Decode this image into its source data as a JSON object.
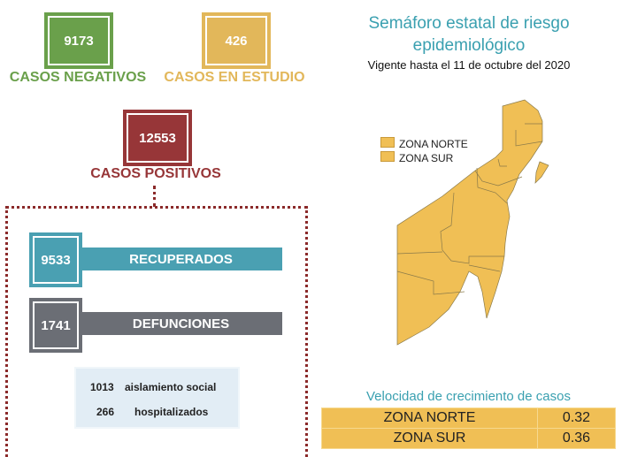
{
  "cards": {
    "negativos": {
      "value": "9173",
      "label": "CASOS NEGATIVOS",
      "color": "#6aa04b"
    },
    "estudio": {
      "value": "426",
      "label": "CASOS EN ESTUDIO",
      "color": "#e2b75a"
    },
    "positivos": {
      "value": "12553",
      "label": "CASOS POSITIVOS",
      "color": "#973638"
    }
  },
  "bars": {
    "recuperados": {
      "value": "9533",
      "label": "RECUPERADOS",
      "color": "#4aa0b2"
    },
    "defunciones": {
      "value": "1741",
      "label": "DEFUNCIONES",
      "color": "#6b6e75"
    }
  },
  "details": [
    {
      "value": "1013",
      "label": "aislamiento social"
    },
    {
      "value": "266",
      "label": "hospitalizados"
    }
  ],
  "map": {
    "title": "Semáforo estatal de riesgo epidemiológico",
    "subtitle": "Vigente hasta el 11 de octubre del 2020",
    "legend": [
      "ZONA NORTE",
      "ZONA SUR"
    ],
    "zone_color": "#f0bf55"
  },
  "growth": {
    "title": "Velocidad de crecimiento de casos",
    "rows": [
      {
        "zone": "ZONA NORTE",
        "value": "0.32"
      },
      {
        "zone": "ZONA SUR",
        "value": "0.36"
      }
    ]
  }
}
